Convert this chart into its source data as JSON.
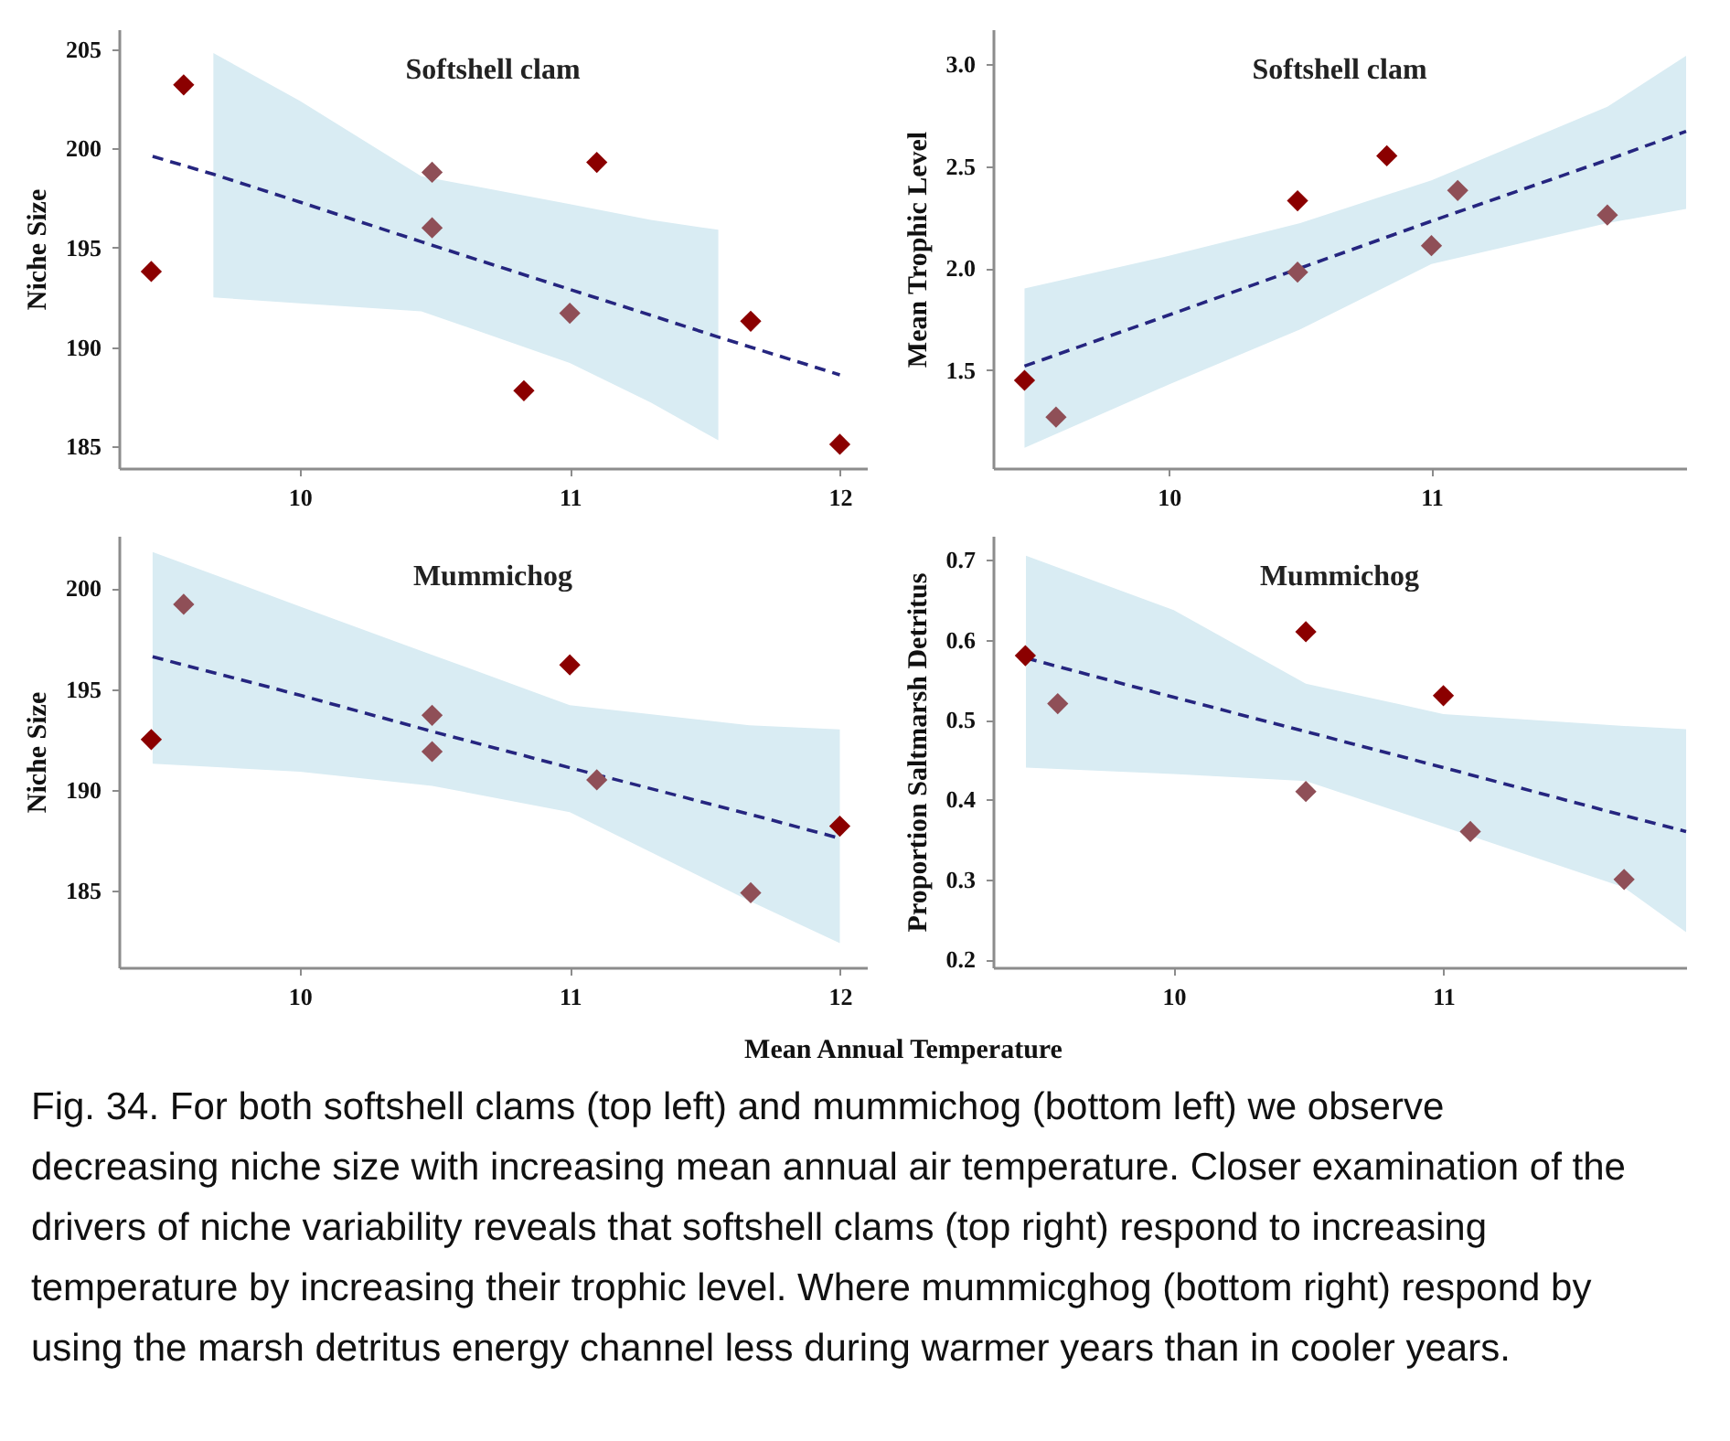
{
  "chart_data": [
    {
      "type": "scatter",
      "title": "Softshell clam",
      "ylabel": "Niche Size",
      "xlim": [
        9.33,
        12.1
      ],
      "xticks": [
        10,
        11,
        12
      ],
      "ylim": [
        183.9,
        206.0
      ],
      "yticks": [
        185,
        190,
        195,
        200,
        205
      ],
      "grid": false,
      "series": [
        {
          "type": "line",
          "color": "#25257f",
          "line_style": "dashed",
          "marker": "none",
          "x": [
            9.455,
            9.68,
            10.0,
            10.45,
            11.0,
            11.3,
            11.55,
            12.0
          ],
          "values": [
            199.6,
            198.7,
            197.3,
            195.3,
            192.9,
            191.6,
            190.5,
            188.6
          ],
          "lower": [
            null,
            192.5,
            192.2,
            191.8,
            189.2,
            187.2,
            185.3,
            null
          ],
          "upper": [
            null,
            204.8,
            202.4,
            198.6,
            197.2,
            196.4,
            195.9,
            null
          ]
        },
        {
          "type": "scatter",
          "marker": "diamond",
          "x": [
            9.45,
            9.57,
            10.49,
            10.49,
            10.83,
            11.0,
            11.1,
            11.67,
            12.0
          ],
          "values": [
            193.8,
            203.2,
            198.8,
            196.0,
            187.8,
            191.7,
            199.3,
            191.3,
            185.1
          ],
          "colors": [
            "#8b0000",
            "#8b0000",
            "#8f4f57",
            "#8f4f57",
            "#8b0000",
            "#8f4f57",
            "#8b0000",
            "#8b0000",
            "#8b0000"
          ]
        }
      ]
    },
    {
      "type": "scatter",
      "title": "Softshell clam",
      "ylabel": "Mean Trophic Level",
      "xlim": [
        9.33,
        11.97
      ],
      "xticks": [
        10,
        11
      ],
      "ylim": [
        1.02,
        3.17
      ],
      "yticks": [
        1.5,
        {
          "value": 2.0,
          "label": "2.0"
        },
        2.5,
        {
          "value": 3.0,
          "label": "3.0"
        }
      ],
      "grid": false,
      "series": [
        {
          "type": "line",
          "color": "#25257f",
          "line_style": "dashed",
          "marker": "none",
          "x": [
            9.45,
            10.0,
            10.5,
            11.0,
            11.67,
            11.97
          ],
          "values": [
            1.52,
            1.77,
            2.0,
            2.23,
            2.53,
            2.67
          ],
          "lower": [
            1.12,
            1.43,
            1.7,
            2.02,
            2.22,
            2.29
          ],
          "upper": [
            1.9,
            2.06,
            2.22,
            2.43,
            2.79,
            3.04
          ]
        },
        {
          "type": "scatter",
          "marker": "diamond",
          "x": [
            9.45,
            9.57,
            10.49,
            10.49,
            10.83,
            11.0,
            11.1,
            11.67
          ],
          "values": [
            1.45,
            1.27,
            2.33,
            1.98,
            2.55,
            2.11,
            2.38,
            2.26
          ],
          "colors": [
            "#8b0000",
            "#8f4f57",
            "#8b0000",
            "#8f4f57",
            "#8b0000",
            "#8f4f57",
            "#8f4f57",
            "#8f4f57"
          ]
        }
      ]
    },
    {
      "type": "scatter",
      "title": "Mummichog",
      "xlabel": "Mean Annual Temperature",
      "ylabel": "Niche Size",
      "xlim": [
        9.33,
        12.1
      ],
      "xticks": [
        10,
        11,
        12
      ],
      "ylim": [
        181.2,
        202.6
      ],
      "yticks": [
        185,
        190,
        195,
        200
      ],
      "grid": false,
      "series": [
        {
          "type": "line",
          "color": "#25257f",
          "line_style": "dashed",
          "marker": "none",
          "x": [
            9.455,
            10.0,
            10.49,
            11.0,
            11.665,
            12.0
          ],
          "values": [
            196.6,
            194.7,
            192.9,
            191.1,
            188.8,
            187.6
          ],
          "lower": [
            191.3,
            190.9,
            190.2,
            188.9,
            184.5,
            182.4
          ],
          "upper": [
            201.8,
            199.1,
            196.7,
            194.2,
            193.2,
            193.0
          ]
        },
        {
          "type": "scatter",
          "marker": "diamond",
          "x": [
            9.45,
            9.57,
            10.49,
            10.49,
            11.0,
            11.1,
            11.67,
            12.0
          ],
          "values": [
            192.5,
            199.2,
            193.7,
            191.9,
            196.2,
            190.5,
            184.9,
            188.2
          ],
          "colors": [
            "#8b0000",
            "#8f4f57",
            "#8f4f57",
            "#8f4f57",
            "#8b0000",
            "#8f4f57",
            "#8f4f57",
            "#8b0000"
          ]
        }
      ]
    },
    {
      "type": "scatter",
      "title": "Mummichog",
      "ylabel": "Proportion Saltmarsh Detritus",
      "xlim": [
        9.33,
        11.9
      ],
      "xticks": [
        10,
        11
      ],
      "ylim": [
        0.19,
        0.73
      ],
      "yticks": [
        0.2,
        0.3,
        0.4,
        0.5,
        0.6,
        0.7
      ],
      "grid": false,
      "series": [
        {
          "type": "line",
          "color": "#25257f",
          "line_style": "dashed",
          "marker": "none",
          "x": [
            9.452,
            10.0,
            10.49,
            11.0,
            11.67,
            11.9
          ],
          "values": [
            0.577,
            0.528,
            0.485,
            0.44,
            0.38,
            0.36
          ],
          "lower": [
            0.44,
            0.432,
            0.423,
            0.366,
            0.29,
            0.234
          ],
          "upper": [
            0.705,
            0.637,
            0.545,
            0.507,
            0.492,
            0.488
          ]
        },
        {
          "type": "scatter",
          "marker": "diamond",
          "x": [
            9.45,
            9.57,
            10.49,
            10.49,
            11.0,
            11.1,
            11.67
          ],
          "values": [
            0.58,
            0.52,
            0.61,
            0.41,
            0.53,
            0.36,
            0.3
          ],
          "colors": [
            "#8b0000",
            "#8f4f57",
            "#8b0000",
            "#8f4f57",
            "#8b0000",
            "#8f4f57",
            "#8f4f57"
          ]
        }
      ]
    },
    {
      "type": "other",
      "annotations": [
        "Fig. 34. For both softshell clams (top left) and mummichog (bottom left) we observe decreasing niche size with increasing mean annual air temperature. Closer examination of the drivers of niche variability reveals that softshell clams (top right) respond to increasing temperature by increasing their trophic level. Where mummicghog (bottom right) respond by using the marsh detritus energy channel less during warmer years than in cooler years."
      ]
    }
  ]
}
